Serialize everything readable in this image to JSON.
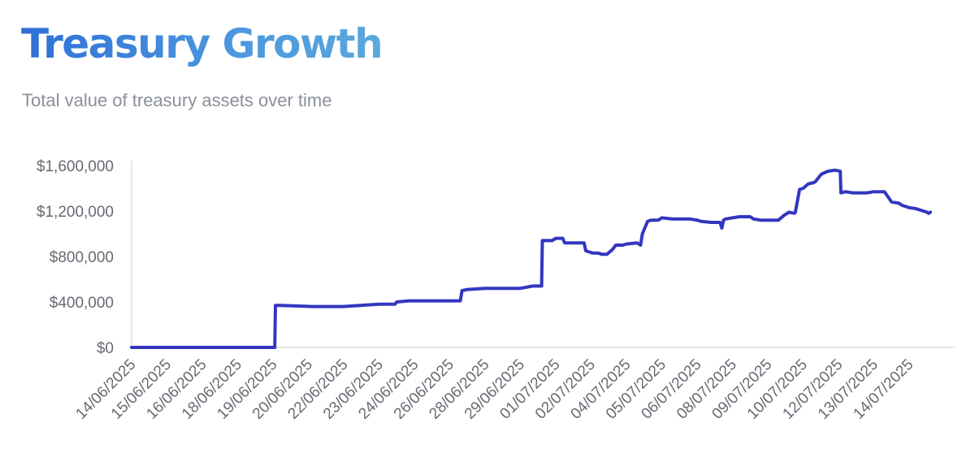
{
  "chart_data": {
    "type": "line",
    "title": "Treasury Growth",
    "subtitle": "Total value of treasury assets over time",
    "xlabel": "",
    "ylabel": "",
    "ylim": [
      0,
      1600000
    ],
    "y_ticks": [
      0,
      400000,
      800000,
      1200000,
      1600000
    ],
    "y_tick_labels": [
      "$0",
      "$400,000",
      "$800,000",
      "$1,200,000",
      "$1,600,000"
    ],
    "x_tick_labels": [
      "14/06/2025",
      "15/06/2025",
      "16/06/2025",
      "18/06/2025",
      "19/06/2025",
      "20/06/2025",
      "22/06/2025",
      "23/06/2025",
      "24/06/2025",
      "26/06/2025",
      "28/06/2025",
      "29/06/2025",
      "01/07/2025",
      "02/07/2025",
      "04/07/2025",
      "05/07/2025",
      "06/07/2025",
      "08/07/2025",
      "09/07/2025",
      "10/07/2025",
      "12/07/2025",
      "13/07/2025",
      "14/07/2025"
    ],
    "grid": false,
    "line_color": "#3236c0",
    "series": [
      {
        "x": [
          0.0,
          4.05,
          4.07,
          4.2,
          5.1,
          6.0,
          7.0,
          7.45,
          7.5,
          7.85,
          8.0,
          8.3,
          9.0,
          9.3,
          9.35,
          9.5,
          10.0,
          10.5,
          10.8,
          11.0,
          11.35,
          11.6,
          11.62,
          11.9,
          12.0,
          12.2,
          12.25,
          12.5,
          12.8,
          12.85,
          13.05,
          13.2,
          13.3,
          13.45,
          13.6,
          13.7,
          13.9,
          14.0,
          14.3,
          14.4,
          14.45,
          14.6,
          14.7,
          14.9,
          15.0,
          15.3,
          15.5,
          15.8,
          16.0,
          16.1,
          16.4,
          16.65,
          16.7,
          16.75,
          16.8,
          17.0,
          17.2,
          17.4,
          17.5,
          17.6,
          17.8,
          18.0,
          18.2,
          18.3,
          18.45,
          18.6,
          18.75,
          18.78,
          18.9,
          19.0,
          19.15,
          19.3,
          19.35,
          19.5,
          19.55,
          19.7,
          19.9,
          20.05,
          20.07,
          20.2,
          20.4,
          20.6,
          20.8,
          21.0,
          21.2,
          21.22,
          21.3,
          21.5,
          21.7,
          21.75,
          21.8,
          21.9,
          22.0,
          22.2,
          22.4,
          22.5,
          22.55,
          22.6
        ],
        "y": [
          0,
          0,
          370000,
          370000,
          360000,
          360000,
          380000,
          380000,
          400000,
          410000,
          410000,
          410000,
          410000,
          410000,
          500000,
          510000,
          520000,
          520000,
          520000,
          520000,
          540000,
          540000,
          940000,
          940000,
          960000,
          960000,
          920000,
          920000,
          920000,
          850000,
          830000,
          830000,
          820000,
          820000,
          860000,
          900000,
          900000,
          910000,
          920000,
          900000,
          1000000,
          1110000,
          1120000,
          1120000,
          1140000,
          1130000,
          1130000,
          1130000,
          1120000,
          1110000,
          1100000,
          1100000,
          1050000,
          1120000,
          1130000,
          1140000,
          1150000,
          1150000,
          1150000,
          1130000,
          1120000,
          1120000,
          1120000,
          1120000,
          1160000,
          1190000,
          1180000,
          1190000,
          1390000,
          1400000,
          1440000,
          1450000,
          1460000,
          1520000,
          1530000,
          1550000,
          1560000,
          1550000,
          1360000,
          1370000,
          1360000,
          1360000,
          1360000,
          1370000,
          1370000,
          1370000,
          1370000,
          1280000,
          1270000,
          1260000,
          1250000,
          1240000,
          1230000,
          1220000,
          1200000,
          1190000,
          1180000,
          1190000
        ]
      }
    ]
  }
}
